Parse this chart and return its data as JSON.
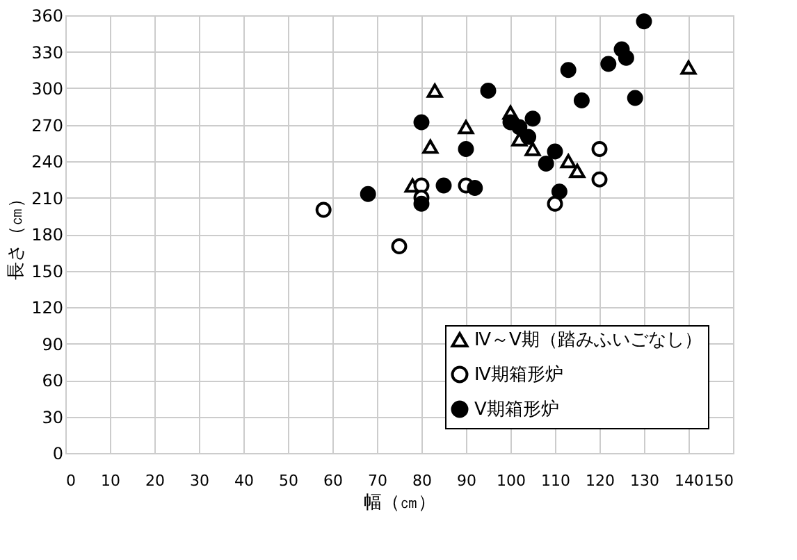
{
  "chart_data": {
    "type": "scatter",
    "xlabel": "幅（㎝）",
    "ylabel": "長さ（㎝）",
    "xlim": [
      0,
      150
    ],
    "ylim": [
      0,
      360
    ],
    "xticks": [
      0,
      10,
      20,
      30,
      40,
      50,
      60,
      70,
      80,
      90,
      100,
      110,
      120,
      130,
      140,
      150
    ],
    "yticks": [
      0,
      30,
      60,
      90,
      120,
      150,
      180,
      210,
      240,
      270,
      300,
      330,
      360
    ],
    "grid": true,
    "legend": "bottom right",
    "series": [
      {
        "name": "Ⅳ～Ⅴ期（踏みふいごなし）",
        "color": "#ffffff",
        "marker": "triangle",
        "x": [
          78,
          82,
          83,
          90,
          100,
          102,
          105,
          113,
          115,
          140
        ],
        "values": [
          220,
          252,
          298,
          268,
          280,
          258,
          250,
          240,
          232,
          317
        ]
      },
      {
        "name": "Ⅳ期箱形炉",
        "color": "#ffffff",
        "marker": "circle",
        "x": [
          58,
          75,
          80,
          80,
          90,
          110,
          120,
          120
        ],
        "values": [
          200,
          170,
          220,
          210,
          220,
          205,
          250,
          225
        ]
      },
      {
        "name": "Ⅴ期箱形炉",
        "color": "#000000",
        "marker": "circle",
        "x": [
          68,
          80,
          80,
          85,
          90,
          92,
          95,
          100,
          102,
          104,
          105,
          108,
          110,
          111,
          113,
          116,
          122,
          125,
          126,
          128,
          130
        ],
        "values": [
          213,
          272,
          205,
          220,
          250,
          218,
          298,
          272,
          268,
          260,
          275,
          238,
          248,
          215,
          315,
          290,
          320,
          332,
          325,
          292,
          355
        ]
      }
    ]
  }
}
